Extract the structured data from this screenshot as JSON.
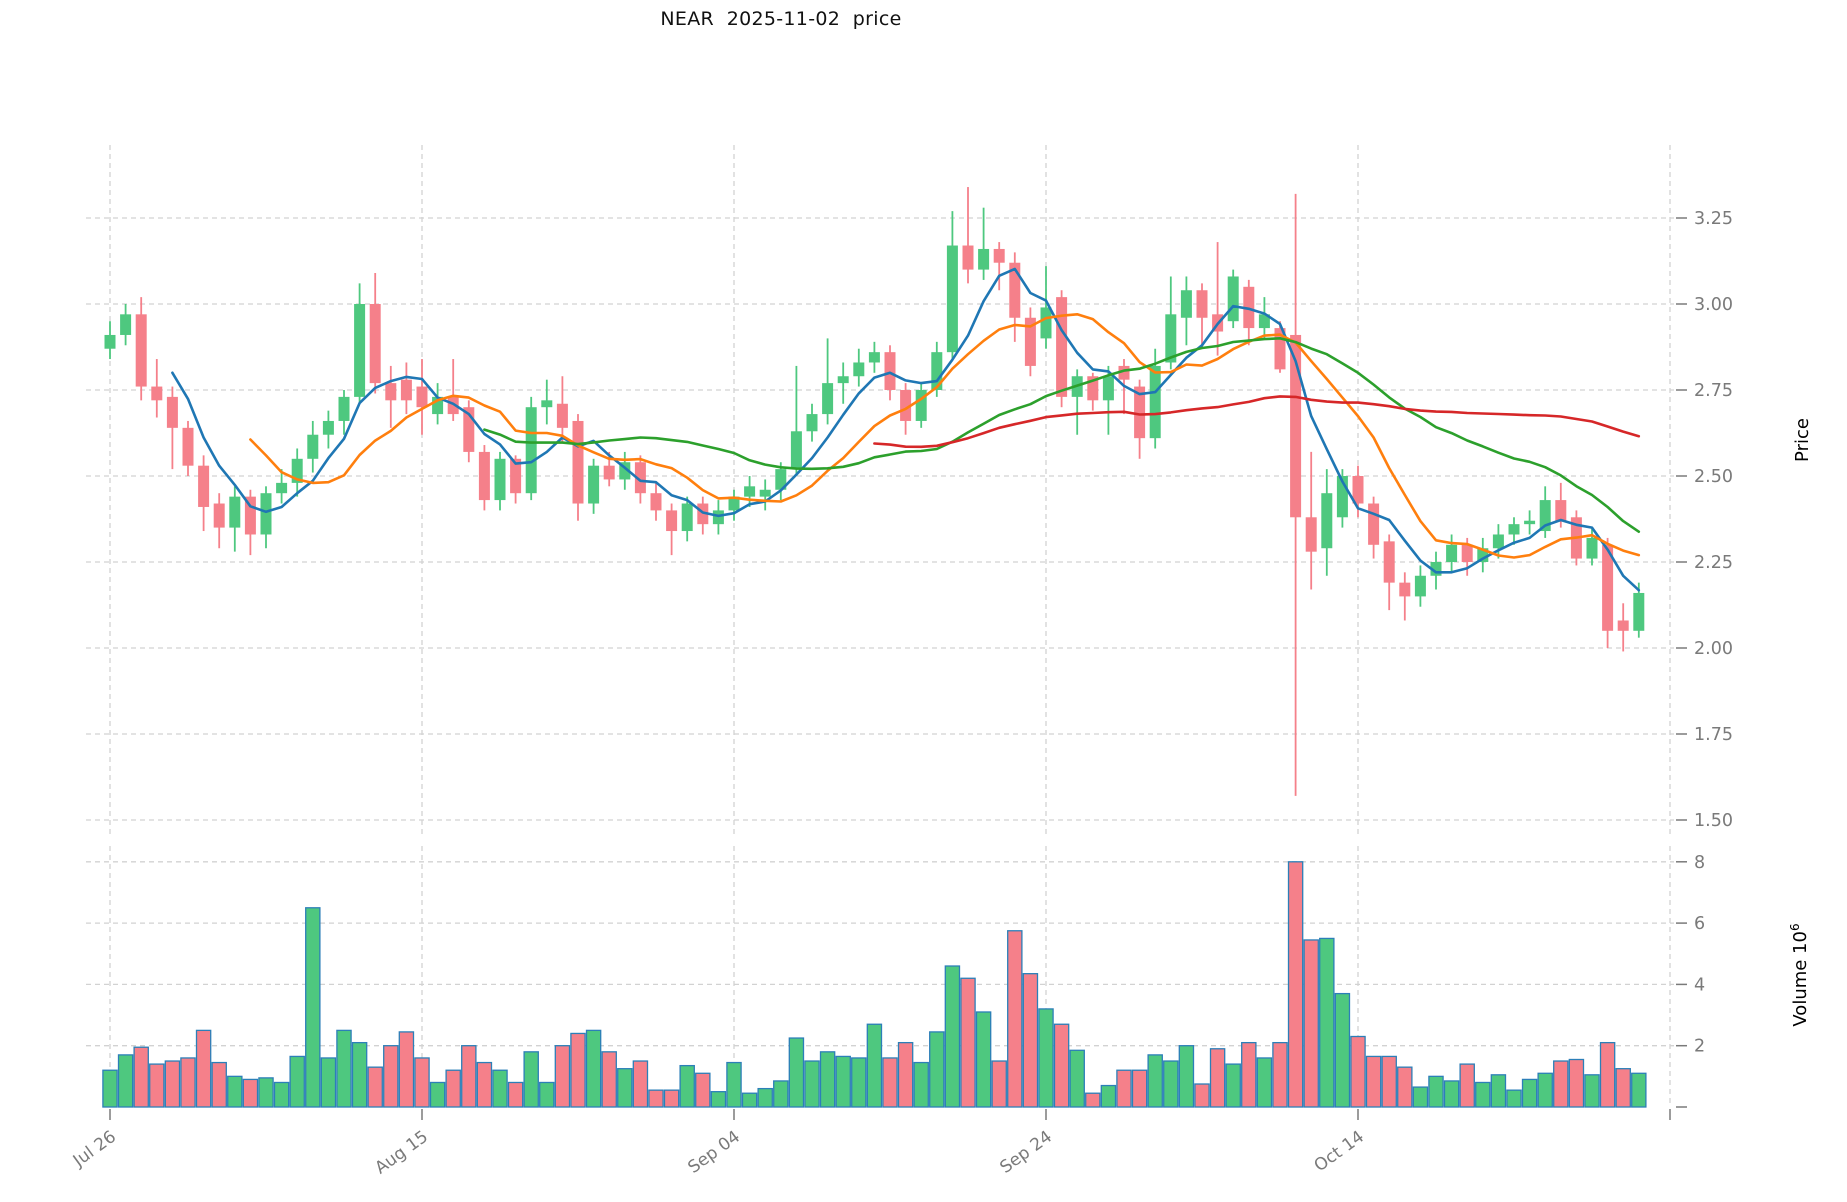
{
  "title": {
    "text": "NEAR  2025-11-02  price"
  },
  "colors": {
    "background": "#ffffff",
    "up": "#4EC87F",
    "down": "#F5808A",
    "volume_edge": "#2C7FB8",
    "grid": "#d2d2d2",
    "tick_text": "#7a7a7a",
    "axis_title_text": "#000000",
    "ma5": "#1F77B4",
    "ma10": "#FF7F0E",
    "ma25": "#2CA02C",
    "ma50": "#D62728"
  },
  "price_axis": {
    "label": "Price",
    "tick_labels": [
      "3.25",
      "3.00",
      "2.75",
      "2.50",
      "2.25",
      "2.00",
      "1.75",
      "1.50"
    ],
    "tick_values": [
      3.25,
      3.0,
      2.75,
      2.5,
      2.25,
      2.0,
      1.75,
      1.5
    ]
  },
  "volume_axis": {
    "label": "Volume",
    "power_base": "10",
    "exponent": "6",
    "tick_labels": [
      "8",
      "6",
      "4",
      "2"
    ],
    "tick_values": [
      8,
      6,
      4,
      2
    ]
  },
  "x_axis": {
    "ticks": [
      {
        "index": 0,
        "label": "Jul 26"
      },
      {
        "index": 20,
        "label": "Aug 15"
      },
      {
        "index": 40,
        "label": "Sep 04"
      },
      {
        "index": 60,
        "label": "Sep 24"
      },
      {
        "index": 80,
        "label": "Oct 14"
      },
      {
        "index": 100,
        "label": ""
      }
    ]
  },
  "chart_data": {
    "type": "candlestick",
    "title": "NEAR  2025-11-02  price",
    "ylabel": "Price",
    "ylabel_lower": "Volume 10^6",
    "legend_position": "none",
    "grid": true,
    "price_range": [
      1.45,
      3.46
    ],
    "volume_range_millions": [
      0,
      8.5
    ],
    "moving_averages": [
      {
        "window": 5,
        "color_key": "ma5"
      },
      {
        "window": 10,
        "color_key": "ma10"
      },
      {
        "window": 25,
        "color_key": "ma25"
      },
      {
        "window": 50,
        "color_key": "ma50"
      }
    ],
    "columns": [
      "date",
      "open",
      "high",
      "low",
      "close",
      "volume_millions"
    ],
    "candles": [
      [
        "Jul 26",
        2.87,
        2.95,
        2.84,
        2.91,
        1.2
      ],
      [
        "Jul 27",
        2.91,
        3.0,
        2.88,
        2.97,
        1.7
      ],
      [
        "Jul 28",
        2.97,
        3.02,
        2.72,
        2.76,
        1.95
      ],
      [
        "Jul 29",
        2.76,
        2.84,
        2.67,
        2.72,
        1.4
      ],
      [
        "Jul 30",
        2.73,
        2.76,
        2.52,
        2.64,
        1.5
      ],
      [
        "Jul 31",
        2.64,
        2.66,
        2.5,
        2.53,
        1.6
      ],
      [
        "Aug 01",
        2.53,
        2.56,
        2.34,
        2.41,
        2.5
      ],
      [
        "Aug 02",
        2.42,
        2.45,
        2.29,
        2.35,
        1.45
      ],
      [
        "Aug 03",
        2.35,
        2.47,
        2.28,
        2.44,
        1.0
      ],
      [
        "Aug 04",
        2.44,
        2.46,
        2.27,
        2.33,
        0.9
      ],
      [
        "Aug 05",
        2.33,
        2.47,
        2.29,
        2.45,
        0.95
      ],
      [
        "Aug 06",
        2.45,
        2.52,
        2.42,
        2.48,
        0.8
      ],
      [
        "Aug 07",
        2.48,
        2.58,
        2.44,
        2.55,
        1.65
      ],
      [
        "Aug 08",
        2.55,
        2.66,
        2.51,
        2.62,
        6.5
      ],
      [
        "Aug 09",
        2.62,
        2.69,
        2.58,
        2.66,
        1.6
      ],
      [
        "Aug 10",
        2.66,
        2.75,
        2.62,
        2.73,
        2.5
      ],
      [
        "Aug 11",
        2.73,
        3.06,
        2.71,
        3.0,
        2.1
      ],
      [
        "Aug 12",
        3.0,
        3.09,
        2.74,
        2.77,
        1.3
      ],
      [
        "Aug 13",
        2.77,
        2.82,
        2.64,
        2.72,
        2.0
      ],
      [
        "Aug 14",
        2.78,
        2.83,
        2.68,
        2.72,
        2.45
      ],
      [
        "Aug 15",
        2.76,
        2.84,
        2.62,
        2.7,
        1.6
      ],
      [
        "Aug 16",
        2.68,
        2.77,
        2.65,
        2.73,
        0.8
      ],
      [
        "Aug 17",
        2.73,
        2.84,
        2.66,
        2.68,
        1.2
      ],
      [
        "Aug 18",
        2.7,
        2.72,
        2.54,
        2.57,
        2.0
      ],
      [
        "Aug 19",
        2.57,
        2.59,
        2.4,
        2.43,
        1.45
      ],
      [
        "Aug 20",
        2.43,
        2.57,
        2.4,
        2.55,
        1.2
      ],
      [
        "Aug 21",
        2.55,
        2.56,
        2.42,
        2.45,
        0.8
      ],
      [
        "Aug 22",
        2.45,
        2.73,
        2.43,
        2.7,
        1.8
      ],
      [
        "Aug 23",
        2.7,
        2.78,
        2.65,
        2.72,
        0.8
      ],
      [
        "Aug 24",
        2.71,
        2.79,
        2.6,
        2.64,
        2.0
      ],
      [
        "Aug 25",
        2.66,
        2.68,
        2.37,
        2.42,
        2.4
      ],
      [
        "Aug 26",
        2.42,
        2.55,
        2.39,
        2.53,
        2.5
      ],
      [
        "Aug 27",
        2.53,
        2.57,
        2.47,
        2.49,
        1.8
      ],
      [
        "Aug 28",
        2.49,
        2.57,
        2.46,
        2.54,
        1.25
      ],
      [
        "Aug 29",
        2.54,
        2.56,
        2.42,
        2.45,
        1.5
      ],
      [
        "Aug 30",
        2.45,
        2.48,
        2.37,
        2.4,
        0.55
      ],
      [
        "Aug 31",
        2.4,
        2.42,
        2.27,
        2.34,
        0.55
      ],
      [
        "Sep 01",
        2.34,
        2.44,
        2.31,
        2.42,
        1.35
      ],
      [
        "Sep 02",
        2.42,
        2.44,
        2.33,
        2.36,
        1.1
      ],
      [
        "Sep 03",
        2.36,
        2.43,
        2.33,
        2.4,
        0.5
      ],
      [
        "Sep 04",
        2.4,
        2.46,
        2.37,
        2.44,
        1.45
      ],
      [
        "Sep 05",
        2.44,
        2.5,
        2.41,
        2.47,
        0.45
      ],
      [
        "Sep 06",
        2.44,
        2.49,
        2.4,
        2.46,
        0.6
      ],
      [
        "Sep 07",
        2.46,
        2.54,
        2.43,
        2.52,
        0.85
      ],
      [
        "Sep 08",
        2.52,
        2.82,
        2.5,
        2.63,
        2.25
      ],
      [
        "Sep 09",
        2.63,
        2.71,
        2.6,
        2.68,
        1.5
      ],
      [
        "Sep 10",
        2.68,
        2.9,
        2.65,
        2.77,
        1.8
      ],
      [
        "Sep 11",
        2.77,
        2.83,
        2.71,
        2.79,
        1.65
      ],
      [
        "Sep 12",
        2.79,
        2.87,
        2.76,
        2.83,
        1.6
      ],
      [
        "Sep 13",
        2.83,
        2.89,
        2.8,
        2.86,
        2.7
      ],
      [
        "Sep 14",
        2.86,
        2.88,
        2.72,
        2.75,
        1.6
      ],
      [
        "Sep 15",
        2.75,
        2.77,
        2.62,
        2.66,
        2.1
      ],
      [
        "Sep 16",
        2.66,
        2.77,
        2.64,
        2.75,
        1.45
      ],
      [
        "Sep 17",
        2.75,
        2.89,
        2.73,
        2.86,
        2.45
      ],
      [
        "Sep 18",
        2.86,
        3.27,
        2.84,
        3.17,
        4.6
      ],
      [
        "Sep 19",
        3.17,
        3.34,
        3.06,
        3.1,
        4.2
      ],
      [
        "Sep 20",
        3.1,
        3.28,
        3.07,
        3.16,
        3.1
      ],
      [
        "Sep 21",
        3.16,
        3.18,
        3.04,
        3.12,
        1.5
      ],
      [
        "Sep 22",
        3.12,
        3.15,
        2.89,
        2.96,
        5.75
      ],
      [
        "Sep 23",
        2.96,
        2.99,
        2.79,
        2.82,
        4.35
      ],
      [
        "Sep 24",
        2.9,
        3.11,
        2.87,
        2.99,
        3.2
      ],
      [
        "Sep 25",
        3.02,
        3.04,
        2.7,
        2.73,
        2.7
      ],
      [
        "Sep 26",
        2.73,
        2.81,
        2.62,
        2.79,
        1.85
      ],
      [
        "Sep 27",
        2.79,
        2.8,
        2.69,
        2.72,
        0.45
      ],
      [
        "Sep 28",
        2.72,
        2.82,
        2.62,
        2.79,
        0.7
      ],
      [
        "Sep 29",
        2.82,
        2.84,
        2.68,
        2.78,
        1.2
      ],
      [
        "Sep 30",
        2.76,
        2.78,
        2.55,
        2.61,
        1.2
      ],
      [
        "Oct 01",
        2.61,
        2.87,
        2.58,
        2.82,
        1.7
      ],
      [
        "Oct 02",
        2.83,
        3.08,
        2.81,
        2.97,
        1.5
      ],
      [
        "Oct 03",
        2.96,
        3.08,
        2.88,
        3.04,
        2.0
      ],
      [
        "Oct 04",
        3.04,
        3.06,
        2.87,
        2.96,
        0.75
      ],
      [
        "Oct 05",
        2.97,
        3.18,
        2.85,
        2.92,
        1.9
      ],
      [
        "Oct 06",
        2.95,
        3.1,
        2.93,
        3.08,
        1.4
      ],
      [
        "Oct 07",
        3.05,
        3.07,
        2.88,
        2.93,
        2.1
      ],
      [
        "Oct 08",
        2.93,
        3.02,
        2.9,
        2.97,
        1.6
      ],
      [
        "Oct 09",
        2.93,
        2.95,
        2.8,
        2.81,
        2.1
      ],
      [
        "Oct 10",
        2.91,
        3.32,
        1.57,
        2.38,
        8.0
      ],
      [
        "Oct 11",
        2.38,
        2.57,
        2.17,
        2.28,
        5.45
      ],
      [
        "Oct 12",
        2.29,
        2.52,
        2.21,
        2.45,
        5.5
      ],
      [
        "Oct 13",
        2.38,
        2.52,
        2.35,
        2.5,
        3.7
      ],
      [
        "Oct 14",
        2.5,
        2.53,
        2.38,
        2.42,
        2.3
      ],
      [
        "Oct 15",
        2.42,
        2.44,
        2.26,
        2.3,
        1.65
      ],
      [
        "Oct 16",
        2.31,
        2.33,
        2.11,
        2.19,
        1.65
      ],
      [
        "Oct 17",
        2.19,
        2.22,
        2.08,
        2.15,
        1.3
      ],
      [
        "Oct 18",
        2.15,
        2.24,
        2.12,
        2.21,
        0.65
      ],
      [
        "Oct 19",
        2.21,
        2.28,
        2.17,
        2.25,
        1.0
      ],
      [
        "Oct 20",
        2.25,
        2.33,
        2.22,
        2.3,
        0.85
      ],
      [
        "Oct 21",
        2.3,
        2.32,
        2.21,
        2.25,
        1.4
      ],
      [
        "Oct 22",
        2.25,
        2.32,
        2.22,
        2.29,
        0.8
      ],
      [
        "Oct 23",
        2.29,
        2.36,
        2.26,
        2.33,
        1.05
      ],
      [
        "Oct 24",
        2.33,
        2.38,
        2.3,
        2.36,
        0.55
      ],
      [
        "Oct 25",
        2.36,
        2.4,
        2.33,
        2.37,
        0.9
      ],
      [
        "Oct 26",
        2.34,
        2.47,
        2.32,
        2.43,
        1.1
      ],
      [
        "Oct 27",
        2.43,
        2.48,
        2.35,
        2.37,
        1.5
      ],
      [
        "Oct 28",
        2.38,
        2.4,
        2.24,
        2.26,
        1.55
      ],
      [
        "Oct 29",
        2.26,
        2.35,
        2.24,
        2.32,
        1.05
      ],
      [
        "Oct 30",
        2.3,
        2.32,
        2.0,
        2.05,
        2.1
      ],
      [
        "Oct 31",
        2.08,
        2.13,
        1.99,
        2.05,
        1.25
      ],
      [
        "Nov 01",
        2.05,
        2.19,
        2.03,
        2.16,
        1.1
      ]
    ]
  }
}
